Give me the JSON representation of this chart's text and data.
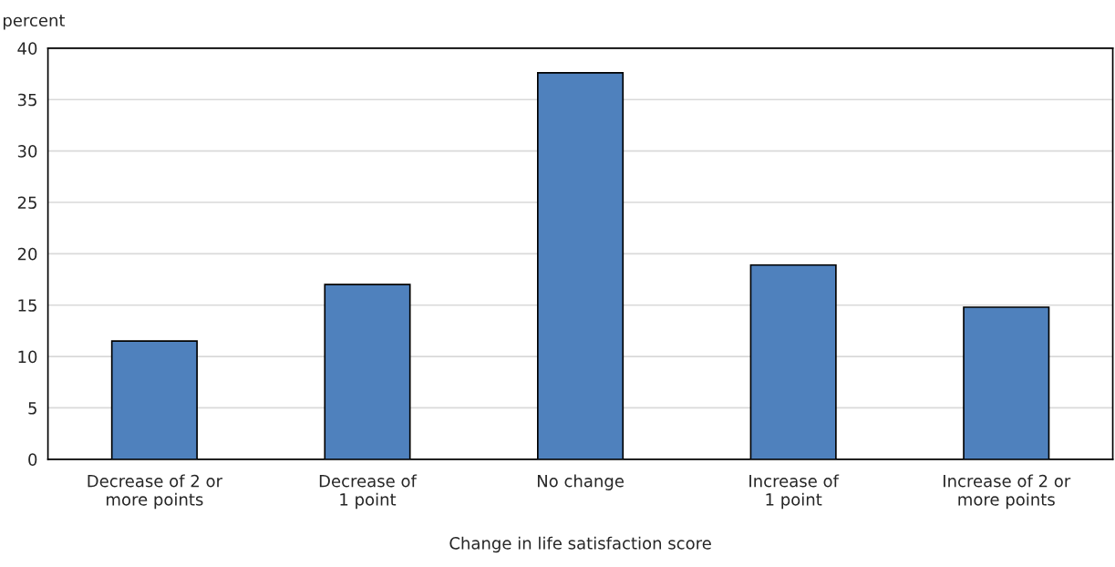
{
  "chart_data": {
    "type": "bar",
    "categories": [
      "Decrease of 2 or\nmore points",
      "Decrease of\n1 point",
      "No change",
      "Increase of\n1 point",
      "Increase of 2 or\nmore points"
    ],
    "values": [
      11.5,
      17.0,
      37.6,
      18.9,
      14.8
    ],
    "color": "#4f81bd",
    "xlabel": "Change in life satisfaction score",
    "ylabel": "percent",
    "ylim": [
      0,
      40
    ],
    "yticks": [
      0,
      5,
      10,
      15,
      20,
      25,
      30,
      35,
      40
    ],
    "grid": "y"
  }
}
